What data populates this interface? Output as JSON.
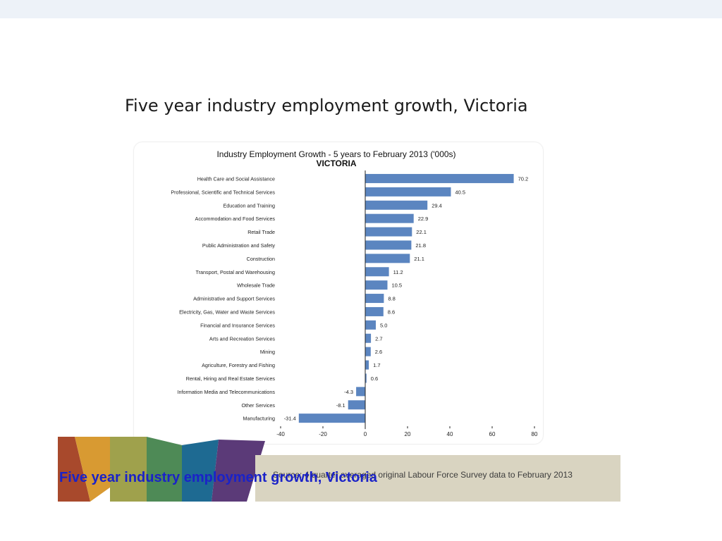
{
  "slide": {
    "title": "Five year industry employment growth, Victoria",
    "caption": "Five year industry employment growth, Victoria",
    "source": "Source: 4 quarter averaged original Labour Force Survey data to February 2013",
    "band_colors": [
      "#a8492c",
      "#d89a32",
      "#9fa14c",
      "#4e8a56",
      "#1e6a92",
      "#5b3a78"
    ]
  },
  "chart_data": {
    "type": "bar",
    "orientation": "horizontal",
    "title": "Industry Employment Growth - 5 years to February 2013 ('000s)",
    "subtitle": "VICTORIA",
    "bar_color": "#5b85c0",
    "xlim": [
      -40,
      80
    ],
    "xticks": [
      -40,
      -20,
      0,
      20,
      40,
      60,
      80
    ],
    "categories": [
      "Health Care and Social Assistance",
      "Professional, Scientific and Technical Services",
      "Education and Training",
      "Accommodation and Food Services",
      "Retail Trade",
      "Public Administration and Safety",
      "Construction",
      "Transport, Postal and Warehousing",
      "Wholesale Trade",
      "Administrative and Support Services",
      "Electricity, Gas, Water and Waste Services",
      "Financial and Insurance Services",
      "Arts and Recreation Services",
      "Mining",
      "Agriculture, Forestry and Fishing",
      "Rental, Hiring and Real Estate Services",
      "Information Media and Telecommunications",
      "Other Services",
      "Manufacturing"
    ],
    "values": [
      70.2,
      40.5,
      29.4,
      22.9,
      22.1,
      21.8,
      21.1,
      11.2,
      10.5,
      8.8,
      8.6,
      5.0,
      2.7,
      2.6,
      1.7,
      0.6,
      -4.3,
      -8.1,
      -31.4
    ]
  }
}
